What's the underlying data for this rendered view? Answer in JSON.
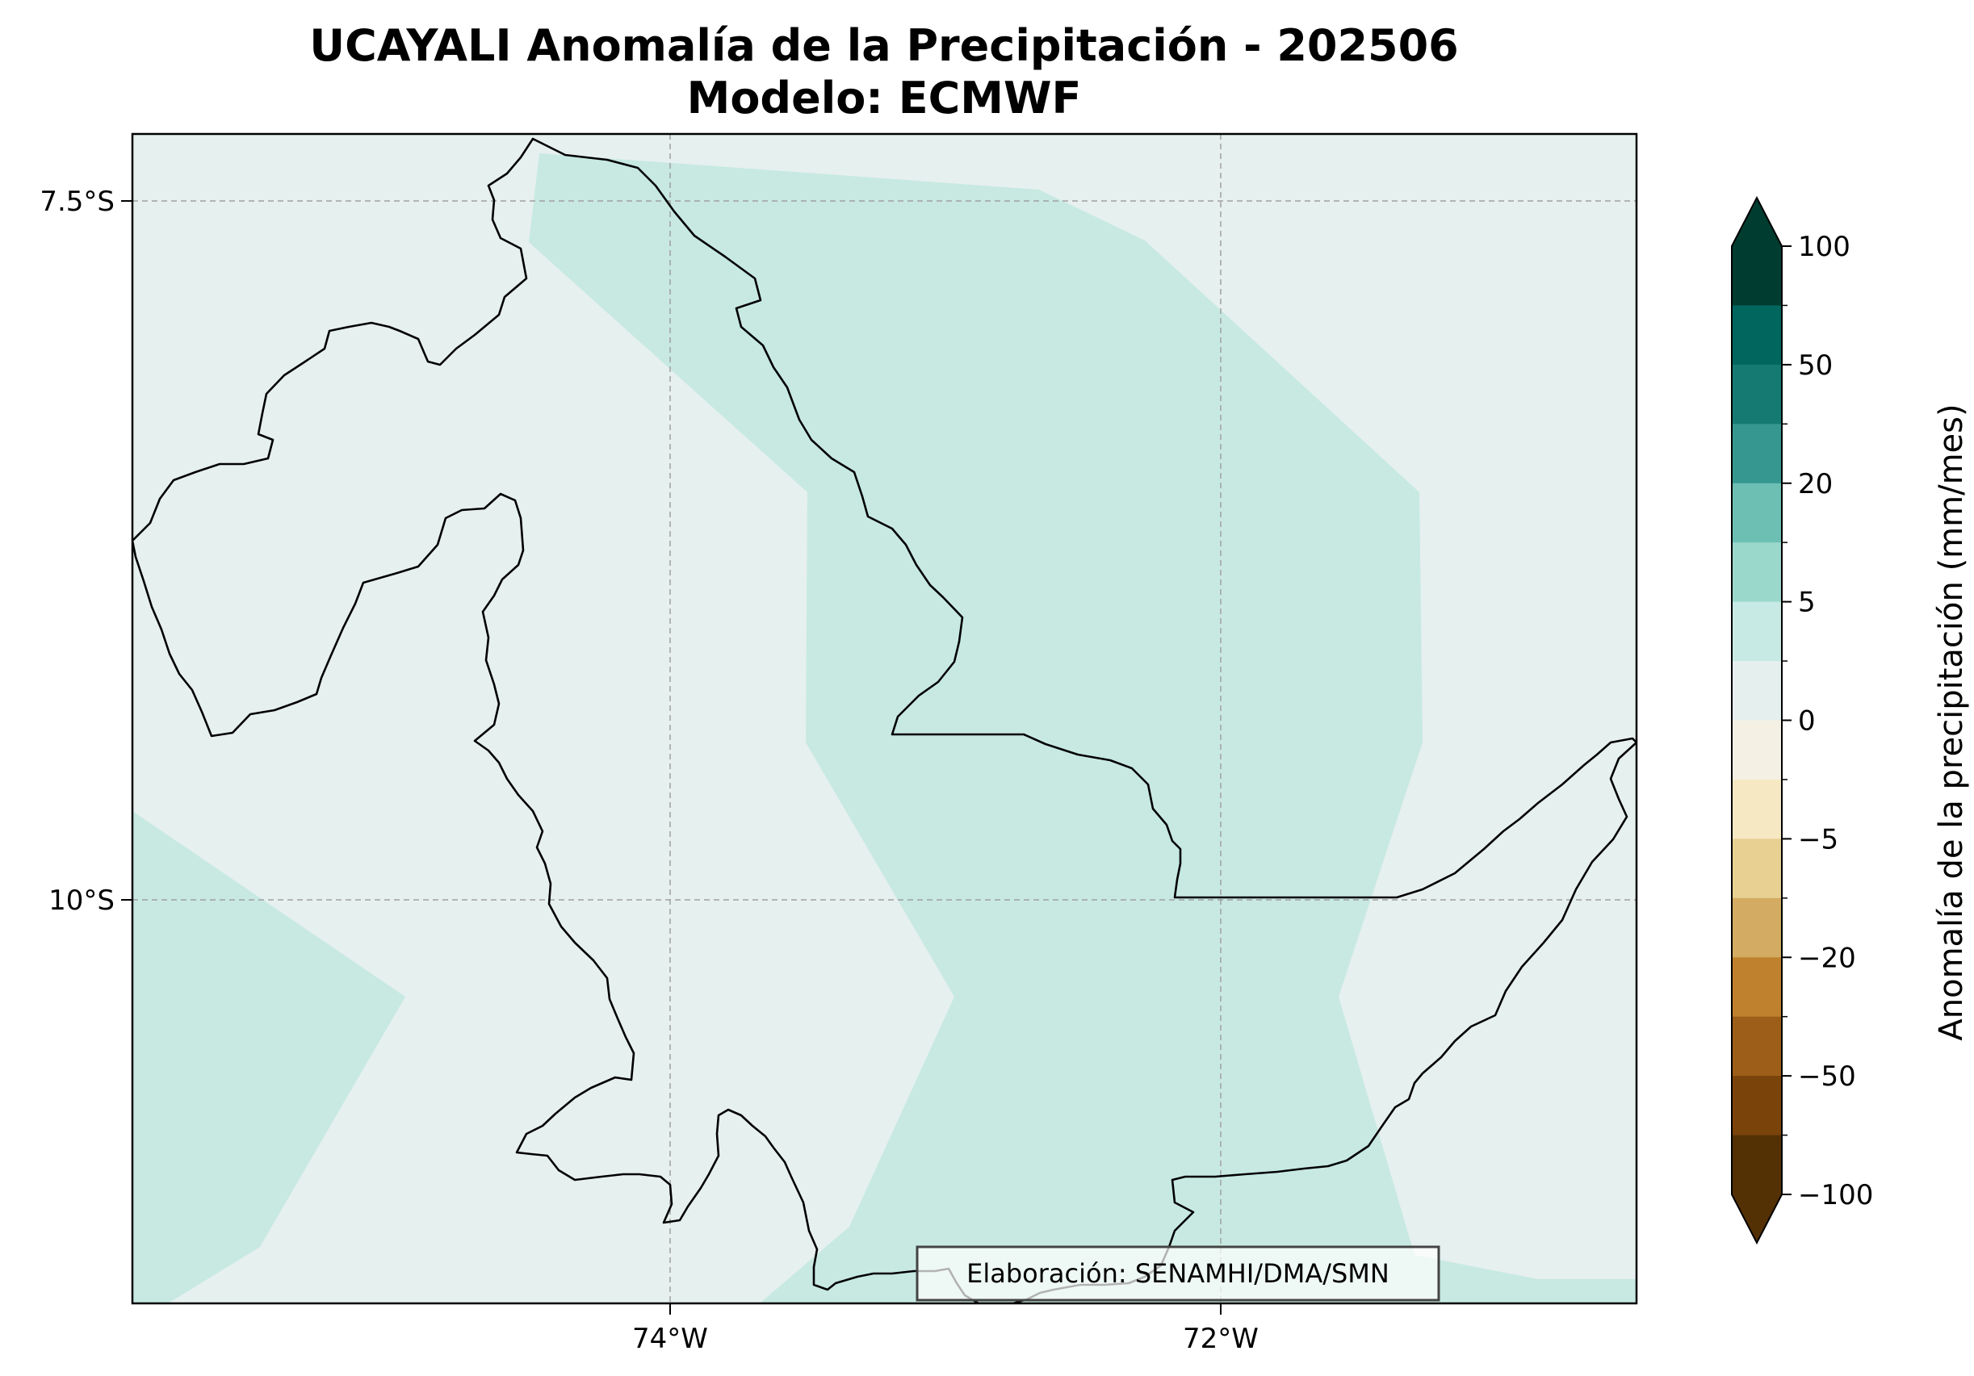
{
  "title_line1": "UCAYALI Anomalía de la Precipitación - 202506",
  "title_line2": "Modelo: ECMWF",
  "map": {
    "lat_ticks": [
      "7.5°S",
      "10°S"
    ],
    "lon_ticks": [
      "74°W",
      "72°W"
    ],
    "gridlines": true,
    "colors": {
      "background": "#e6f0ee",
      "positive_anomaly": "#c7e9e2",
      "border": "#000000"
    }
  },
  "credit": "Elaboración: SENAMHI/DMA/SMN",
  "colorbar": {
    "label": "Anomalía de la precipitación (mm/mes)",
    "tick_labels": [
      "100",
      "50",
      "20",
      "5",
      "0",
      "−5",
      "−20",
      "−50",
      "−100"
    ],
    "extend": "both",
    "colors_top_to_bottom": [
      "#003c30",
      "#01665e",
      "#157a72",
      "#35978f",
      "#6dbfb4",
      "#9bd8cc",
      "#c7eae4",
      "#e5efed",
      "#f4f0e4",
      "#f6e8c3",
      "#e7d092",
      "#d3ab62",
      "#bf812d",
      "#9c5e18",
      "#7a430a",
      "#543005"
    ]
  }
}
